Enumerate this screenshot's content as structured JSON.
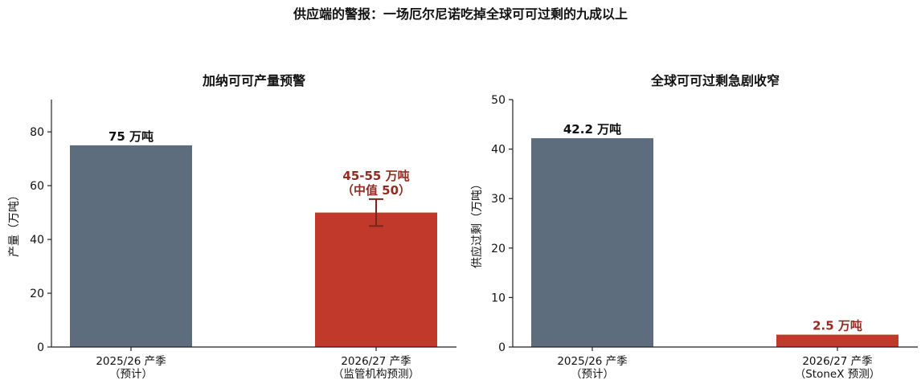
{
  "figure": {
    "title": "供应端的警报：一场厄尔尼诺吃掉全球可可过剩的九成以上"
  },
  "colors": {
    "neutral": "#5d6d7e",
    "alert": "#c0392b",
    "alert_text": "#922b21",
    "errorbar": "#7b241c",
    "axis": "#222222"
  },
  "chart_data": [
    {
      "type": "bar",
      "title": "加纳可可产量预警",
      "ylabel": "产量（万吨）",
      "ylim": [
        0,
        92
      ],
      "yticks": [
        0,
        20,
        40,
        60,
        80
      ],
      "categories": [
        [
          "2025/26 产季",
          "（预计）"
        ],
        [
          "2026/27 产季",
          "（监管机构预测）"
        ]
      ],
      "values": [
        75,
        50
      ],
      "bar_colors": [
        "neutral",
        "alert"
      ],
      "error": [
        null,
        [
          45,
          55
        ]
      ],
      "labels": [
        [
          "75 万吨"
        ],
        [
          "45-55 万吨",
          "（中值 50）"
        ]
      ],
      "label_colors": [
        "#111111",
        "alert_text"
      ],
      "label_anchor": [
        75,
        55
      ]
    },
    {
      "type": "bar",
      "title": "全球可可过剩急剧收窄",
      "ylabel": "供应过剩（万吨）",
      "ylim": [
        0,
        50
      ],
      "yticks": [
        0,
        10,
        20,
        30,
        40,
        50
      ],
      "categories": [
        [
          "2025/26 产季",
          "（预计）"
        ],
        [
          "2026/27 产季",
          "（StoneX 预测）"
        ]
      ],
      "values": [
        42.2,
        2.5
      ],
      "bar_colors": [
        "neutral",
        "alert"
      ],
      "error": [
        null,
        null
      ],
      "labels": [
        [
          "42.2 万吨"
        ],
        [
          "2.5 万吨"
        ]
      ],
      "label_colors": [
        "#111111",
        "alert_text"
      ],
      "label_anchor": [
        42.2,
        2.5
      ]
    }
  ]
}
